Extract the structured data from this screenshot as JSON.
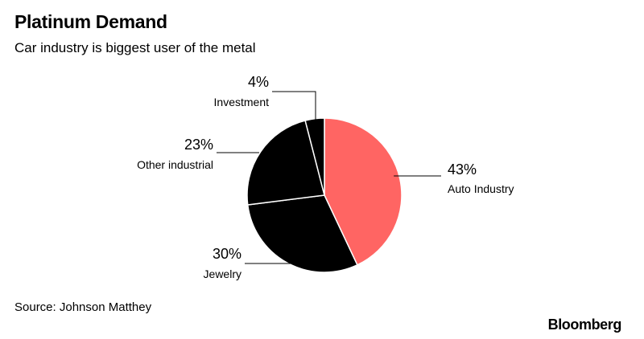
{
  "header": {
    "title": "Platinum Demand",
    "subtitle": "Car industry is biggest user of the metal"
  },
  "footer": {
    "source": "Source: Johnson Matthey",
    "brand": "Bloomberg"
  },
  "chart_data": {
    "type": "pie",
    "title": "Platinum Demand",
    "subtitle": "Car industry is biggest user of the metal",
    "categories": [
      "Auto Industry",
      "Jewelry",
      "Other industrial",
      "Investment"
    ],
    "values": [
      43,
      30,
      23,
      4
    ],
    "value_labels": [
      "43%",
      "30%",
      "23%",
      "4%"
    ],
    "colors": [
      "#ff6563",
      "#000000",
      "#000000",
      "#000000"
    ],
    "slice_border_color": "#ffffff",
    "start": "12 o'clock, clockwise",
    "legend": "none (direct labels)"
  }
}
